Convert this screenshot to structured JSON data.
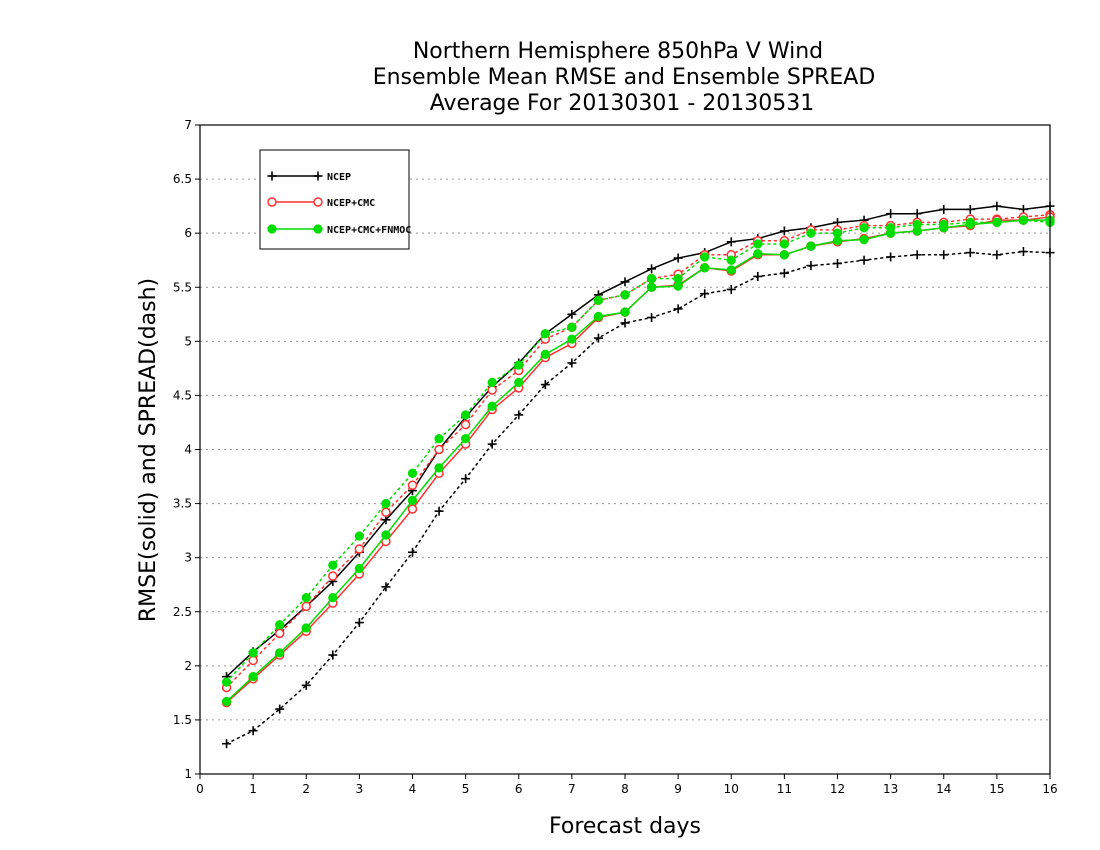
{
  "chart_data": {
    "type": "line",
    "title": [
      "Northern Hemisphere 850hPa V Wind",
      "Ensemble Mean RMSE and Ensemble SPREAD",
      "Average For 20130301 - 20130531"
    ],
    "xlabel": "Forecast days",
    "ylabel": "RMSE(solid) and SPREAD(dash)",
    "xlim": [
      0,
      16
    ],
    "ylim": [
      1,
      7
    ],
    "xticks": [
      "0",
      "1",
      "2",
      "3",
      "4",
      "5",
      "6",
      "7",
      "8",
      "9",
      "10",
      "11",
      "12",
      "13",
      "14",
      "15",
      "16"
    ],
    "yticks": [
      "1",
      "1.5",
      "2",
      "2.5",
      "3",
      "3.5",
      "4",
      "4.5",
      "5",
      "5.5",
      "6",
      "6.5",
      "7"
    ],
    "grid": "dotted-horizontal",
    "legend_position": "upper-left",
    "x": [
      0.5,
      1,
      1.5,
      2,
      2.5,
      3,
      3.5,
      4,
      4.5,
      5,
      5.5,
      6,
      6.5,
      7,
      7.5,
      8,
      8.5,
      9,
      9.5,
      10,
      10.5,
      11,
      11.5,
      12,
      12.5,
      13,
      13.5,
      14,
      14.5,
      15,
      15.5,
      16
    ],
    "series": [
      {
        "name": "NCEP",
        "color": "#000000",
        "marker": "plus",
        "rmse": [
          1.9,
          2.13,
          2.33,
          2.55,
          2.78,
          3.05,
          3.35,
          3.62,
          4.0,
          4.3,
          4.58,
          4.8,
          5.07,
          5.25,
          5.43,
          5.55,
          5.67,
          5.77,
          5.82,
          5.92,
          5.95,
          6.02,
          6.05,
          6.1,
          6.12,
          6.18,
          6.18,
          6.22,
          6.22,
          6.25,
          6.22,
          6.25
        ],
        "spread": [
          1.28,
          1.4,
          1.6,
          1.82,
          2.1,
          2.4,
          2.73,
          3.05,
          3.43,
          3.73,
          4.05,
          4.32,
          4.6,
          4.8,
          5.03,
          5.17,
          5.22,
          5.3,
          5.44,
          5.48,
          5.6,
          5.63,
          5.7,
          5.72,
          5.75,
          5.78,
          5.8,
          5.8,
          5.82,
          5.8,
          5.83,
          5.82
        ]
      },
      {
        "name": "NCEP+CMC",
        "color": "#ff3030",
        "marker": "open-circle",
        "rmse": [
          1.66,
          1.88,
          2.1,
          2.32,
          2.58,
          2.85,
          3.15,
          3.45,
          3.78,
          4.05,
          4.37,
          4.57,
          4.85,
          4.98,
          5.22,
          5.27,
          5.5,
          5.52,
          5.68,
          5.65,
          5.8,
          5.8,
          5.88,
          5.92,
          5.95,
          6.0,
          6.02,
          6.05,
          6.07,
          6.12,
          6.12,
          6.15
        ],
        "spread": [
          1.8,
          2.05,
          2.3,
          2.55,
          2.83,
          3.08,
          3.42,
          3.67,
          4.0,
          4.23,
          4.55,
          4.73,
          5.02,
          5.13,
          5.38,
          5.43,
          5.58,
          5.62,
          5.8,
          5.8,
          5.93,
          5.93,
          6.03,
          6.03,
          6.07,
          6.07,
          6.1,
          6.1,
          6.13,
          6.13,
          6.15,
          6.17
        ]
      },
      {
        "name": "NCEP+CMC+FNMOC",
        "color": "#00dd00",
        "marker": "filled-circle",
        "rmse": [
          1.67,
          1.9,
          2.12,
          2.35,
          2.63,
          2.9,
          3.21,
          3.53,
          3.83,
          4.1,
          4.4,
          4.62,
          4.88,
          5.02,
          5.23,
          5.27,
          5.5,
          5.51,
          5.68,
          5.66,
          5.81,
          5.8,
          5.88,
          5.93,
          5.94,
          6.0,
          6.02,
          6.05,
          6.08,
          6.1,
          6.12,
          6.12
        ],
        "spread": [
          1.85,
          2.12,
          2.38,
          2.63,
          2.93,
          3.2,
          3.5,
          3.78,
          4.1,
          4.32,
          4.62,
          4.78,
          5.07,
          5.13,
          5.38,
          5.43,
          5.58,
          5.58,
          5.78,
          5.75,
          5.9,
          5.9,
          6.0,
          6.0,
          6.05,
          6.05,
          6.08,
          6.08,
          6.1,
          6.1,
          6.12,
          6.1
        ]
      }
    ]
  }
}
